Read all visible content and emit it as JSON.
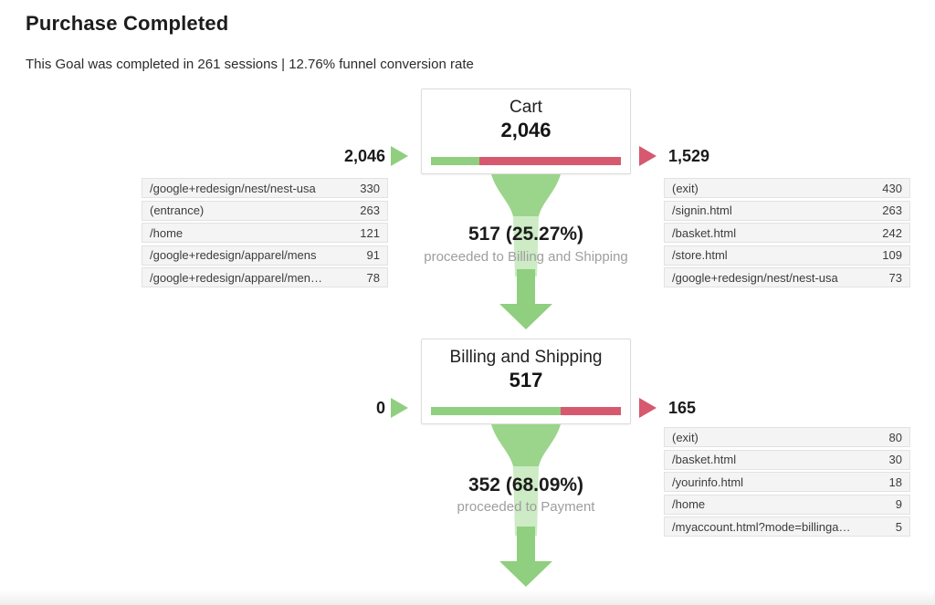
{
  "header": {
    "title": "Purchase Completed",
    "subtitle": "This Goal was completed in 261 sessions | 12.76% funnel conversion rate"
  },
  "colors": {
    "green": "#8FCF7F",
    "funnel_green": "#9BD48B",
    "funnel_green_light": "#CDEBC4",
    "red": "#D6596F",
    "row_bg": "#F4F4F4",
    "row_border": "#E2E2E2",
    "muted": "#9E9E9E"
  },
  "chart_data": {
    "type": "funnel",
    "title": "Purchase Completed",
    "goal_sessions": 261,
    "funnel_conversion_rate_pct": 12.76,
    "steps": [
      {
        "name": "Cart",
        "sessions": 2046,
        "sessions_display": "2,046",
        "entered": 2046,
        "entered_display": "2,046",
        "exited": 1529,
        "exited_display": "1,529",
        "proceeded": 517,
        "proceeded_pct": 25.27,
        "proceeded_display": "517 (25.27%)",
        "proceeded_caption": "proceeded to Billing and Shipping",
        "bar_green_pct": 25.27,
        "entrances": [
          {
            "label": "/google+redesign/nest/nest-usa",
            "value": "330"
          },
          {
            "label": "(entrance)",
            "value": "263"
          },
          {
            "label": "/home",
            "value": "121"
          },
          {
            "label": "/google+redesign/apparel/mens",
            "value": "91"
          },
          {
            "label": "/google+redesign/apparel/men…",
            "value": "78"
          }
        ],
        "exits": [
          {
            "label": "(exit)",
            "value": "430"
          },
          {
            "label": "/signin.html",
            "value": "263"
          },
          {
            "label": "/basket.html",
            "value": "242"
          },
          {
            "label": "/store.html",
            "value": "109"
          },
          {
            "label": "/google+redesign/nest/nest-usa",
            "value": "73"
          }
        ]
      },
      {
        "name": "Billing and Shipping",
        "sessions": 517,
        "sessions_display": "517",
        "entered": 0,
        "entered_display": "0",
        "exited": 165,
        "exited_display": "165",
        "proceeded": 352,
        "proceeded_pct": 68.09,
        "proceeded_display": "352 (68.09%)",
        "proceeded_caption": "proceeded to Payment",
        "bar_green_pct": 68.09,
        "entrances": [],
        "exits": [
          {
            "label": "(exit)",
            "value": "80"
          },
          {
            "label": "/basket.html",
            "value": "30"
          },
          {
            "label": "/yourinfo.html",
            "value": "18"
          },
          {
            "label": "/home",
            "value": "9"
          },
          {
            "label": "/myaccount.html?mode=billinga…",
            "value": "5"
          }
        ]
      }
    ]
  }
}
